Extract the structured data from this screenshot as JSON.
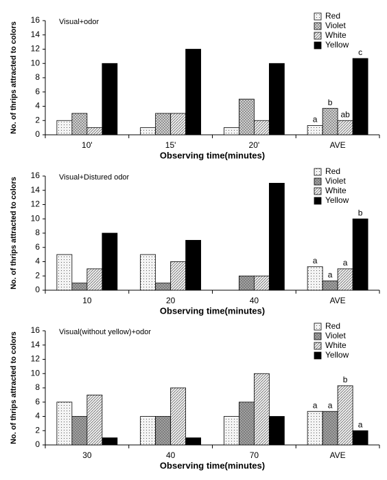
{
  "chart_data": [
    {
      "type": "bar",
      "title": "Visual+odor",
      "xlabel": "Observing time(minutes)",
      "ylabel": "No. of thrips attracted to colors",
      "categories": [
        "10'",
        "15'",
        "20'",
        "AVE"
      ],
      "series": [
        {
          "name": "Red",
          "color": "#f4f4f4",
          "values": [
            2,
            1,
            1,
            1.3
          ]
        },
        {
          "name": "Violet",
          "color": "#d9d9d9",
          "values": [
            3,
            3,
            5,
            3.7
          ]
        },
        {
          "name": "White",
          "color": "#eeeeee",
          "values": [
            1,
            3,
            2,
            2
          ]
        },
        {
          "name": "Yellow",
          "color": "#000000",
          "values": [
            10,
            12,
            10,
            10.7
          ]
        }
      ],
      "ave_letters": [
        "a",
        "b",
        "ab",
        "c"
      ],
      "ylim": [
        0,
        16
      ],
      "yticks": [
        0,
        2,
        4,
        6,
        8,
        10,
        12,
        14,
        16
      ],
      "grid": false
    },
    {
      "type": "bar",
      "title": "Visual+Distured odor",
      "xlabel": "Observing time(minutes)",
      "ylabel": "No. of thrips attracted to colors",
      "categories": [
        "10",
        "20",
        "40",
        "AVE"
      ],
      "series": [
        {
          "name": "Red",
          "color": "#f4f4f4",
          "values": [
            5,
            5,
            0,
            3.3
          ]
        },
        {
          "name": "Violet",
          "color": "#a6a6a6",
          "values": [
            1,
            1,
            2,
            1.3
          ]
        },
        {
          "name": "White",
          "color": "#eeeeee",
          "values": [
            3,
            4,
            2,
            3
          ]
        },
        {
          "name": "Yellow",
          "color": "#000000",
          "values": [
            8,
            7,
            15,
            10
          ]
        }
      ],
      "ave_letters": [
        "a",
        "a",
        "a",
        "b"
      ],
      "ylim": [
        0,
        16
      ],
      "yticks": [
        0,
        2,
        4,
        6,
        8,
        10,
        12,
        14,
        16
      ],
      "grid": false
    },
    {
      "type": "bar",
      "title": "Visual(without yellow)+odor",
      "xlabel": "Observing time(minutes)",
      "ylabel": "No. of thrips attracted to colors",
      "categories": [
        "30",
        "40",
        "70",
        "AVE"
      ],
      "series": [
        {
          "name": "Red",
          "color": "#f4f4f4",
          "values": [
            6,
            4,
            4,
            4.7
          ]
        },
        {
          "name": "Violet",
          "color": "#a6a6a6",
          "values": [
            4,
            4,
            6,
            4.7
          ]
        },
        {
          "name": "White",
          "color": "#eeeeee",
          "values": [
            7,
            8,
            10,
            8.3
          ]
        },
        {
          "name": "Yellow",
          "color": "#000000",
          "values": [
            1,
            1,
            4,
            2
          ]
        }
      ],
      "ave_letters": [
        "a",
        "a",
        "b",
        "a"
      ],
      "ylim": [
        0,
        16
      ],
      "yticks": [
        0,
        2,
        4,
        6,
        8,
        10,
        12,
        14,
        16
      ],
      "grid": false
    }
  ]
}
